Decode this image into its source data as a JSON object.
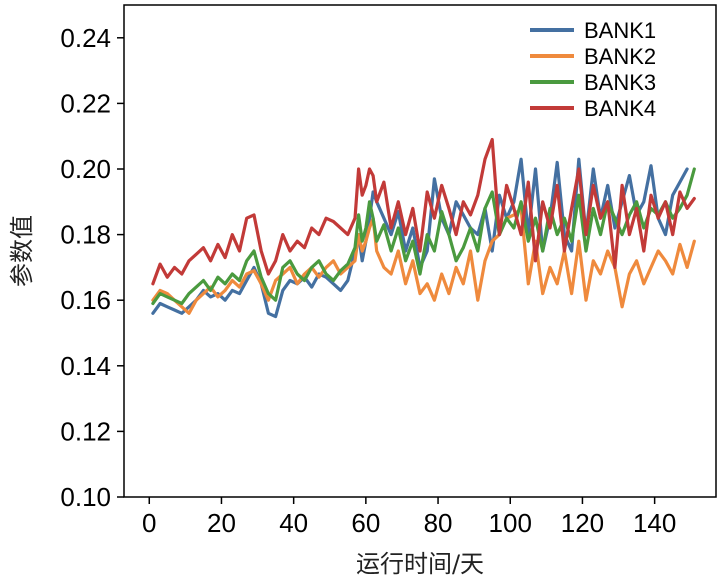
{
  "chart_data": {
    "type": "line",
    "title": "",
    "xlabel": "运行时间/天",
    "ylabel": "参数值",
    "xlim": [
      -7,
      157
    ],
    "ylim": [
      0.1,
      0.25
    ],
    "xticks": [
      0,
      20,
      40,
      60,
      80,
      100,
      120,
      140
    ],
    "xtick_labels": [
      "0",
      "20",
      "40",
      "60",
      "80",
      "100",
      "120",
      "140"
    ],
    "yticks": [
      0.1,
      0.12,
      0.14,
      0.16,
      0.18,
      0.2,
      0.22,
      0.24
    ],
    "ytick_labels": [
      "0.10",
      "0.12",
      "0.14",
      "0.16",
      "0.18",
      "0.20",
      "0.22",
      "0.24"
    ],
    "grid": false,
    "legend_position": "top-right",
    "series": [
      {
        "name": "BANK1",
        "color": "#4470a1",
        "x": [
          1,
          3,
          5,
          7,
          9,
          11,
          13,
          15,
          17,
          19,
          21,
          23,
          25,
          27,
          29,
          31,
          33,
          35,
          37,
          39,
          41,
          43,
          45,
          47,
          49,
          51,
          53,
          55,
          57,
          58,
          59,
          60,
          61,
          62,
          63,
          65,
          67,
          69,
          71,
          73,
          75,
          77,
          79,
          81,
          83,
          85,
          87,
          89,
          91,
          93,
          95,
          97,
          99,
          101,
          103,
          105,
          107,
          109,
          111,
          113,
          115,
          117,
          119,
          121,
          123,
          125,
          127,
          129,
          131,
          133,
          135,
          137,
          139,
          141,
          143,
          145,
          147,
          149
        ],
        "y": [
          0.156,
          0.159,
          0.158,
          0.157,
          0.156,
          0.158,
          0.16,
          0.163,
          0.161,
          0.162,
          0.16,
          0.163,
          0.162,
          0.166,
          0.17,
          0.165,
          0.156,
          0.155,
          0.163,
          0.166,
          0.165,
          0.167,
          0.164,
          0.168,
          0.167,
          0.165,
          0.163,
          0.166,
          0.175,
          0.18,
          0.172,
          0.178,
          0.185,
          0.193,
          0.19,
          0.185,
          0.18,
          0.187,
          0.175,
          0.182,
          0.17,
          0.175,
          0.197,
          0.185,
          0.18,
          0.19,
          0.186,
          0.182,
          0.18,
          0.188,
          0.175,
          0.192,
          0.185,
          0.19,
          0.203,
          0.18,
          0.2,
          0.175,
          0.185,
          0.202,
          0.18,
          0.175,
          0.203,
          0.18,
          0.2,
          0.185,
          0.195,
          0.182,
          0.19,
          0.198,
          0.186,
          0.19,
          0.201,
          0.185,
          0.18,
          0.192,
          0.196,
          0.2
        ]
      },
      {
        "name": "BANK2",
        "color": "#ef8a3d",
        "x": [
          1,
          3,
          5,
          7,
          9,
          11,
          13,
          15,
          17,
          19,
          21,
          23,
          25,
          27,
          29,
          31,
          33,
          35,
          37,
          39,
          41,
          43,
          45,
          47,
          49,
          51,
          53,
          55,
          57,
          58,
          59,
          60,
          61,
          62,
          63,
          65,
          67,
          69,
          71,
          73,
          75,
          77,
          79,
          81,
          83,
          85,
          87,
          89,
          91,
          93,
          95,
          97,
          99,
          101,
          103,
          105,
          107,
          109,
          111,
          113,
          115,
          117,
          119,
          121,
          123,
          125,
          127,
          129,
          131,
          133,
          135,
          137,
          139,
          141,
          143,
          145,
          147,
          149,
          151
        ],
        "y": [
          0.16,
          0.163,
          0.162,
          0.16,
          0.158,
          0.156,
          0.16,
          0.162,
          0.164,
          0.161,
          0.163,
          0.166,
          0.164,
          0.168,
          0.169,
          0.165,
          0.16,
          0.166,
          0.168,
          0.17,
          0.165,
          0.168,
          0.17,
          0.167,
          0.17,
          0.172,
          0.168,
          0.17,
          0.172,
          0.18,
          0.175,
          0.178,
          0.182,
          0.185,
          0.175,
          0.17,
          0.168,
          0.175,
          0.165,
          0.172,
          0.162,
          0.165,
          0.16,
          0.168,
          0.162,
          0.17,
          0.165,
          0.175,
          0.16,
          0.172,
          0.178,
          0.18,
          0.185,
          0.186,
          0.188,
          0.165,
          0.178,
          0.162,
          0.17,
          0.165,
          0.175,
          0.162,
          0.178,
          0.16,
          0.172,
          0.168,
          0.175,
          0.17,
          0.158,
          0.168,
          0.172,
          0.165,
          0.17,
          0.175,
          0.172,
          0.168,
          0.177,
          0.17,
          0.178
        ]
      },
      {
        "name": "BANK3",
        "color": "#4a9a3f",
        "x": [
          1,
          3,
          5,
          7,
          9,
          11,
          13,
          15,
          17,
          19,
          21,
          23,
          25,
          27,
          29,
          31,
          33,
          35,
          37,
          39,
          41,
          43,
          45,
          47,
          49,
          51,
          53,
          55,
          57,
          58,
          59,
          60,
          61,
          62,
          63,
          65,
          67,
          69,
          71,
          73,
          75,
          77,
          79,
          81,
          83,
          85,
          87,
          89,
          91,
          93,
          95,
          97,
          99,
          101,
          103,
          105,
          107,
          109,
          111,
          113,
          115,
          117,
          119,
          121,
          123,
          125,
          127,
          129,
          131,
          133,
          135,
          137,
          139,
          141,
          143,
          145,
          147,
          149,
          151
        ],
        "y": [
          0.159,
          0.162,
          0.161,
          0.16,
          0.159,
          0.162,
          0.164,
          0.166,
          0.163,
          0.167,
          0.165,
          0.168,
          0.166,
          0.172,
          0.175,
          0.167,
          0.162,
          0.16,
          0.17,
          0.172,
          0.168,
          0.166,
          0.17,
          0.172,
          0.168,
          0.166,
          0.169,
          0.171,
          0.176,
          0.186,
          0.178,
          0.182,
          0.19,
          0.185,
          0.178,
          0.183,
          0.175,
          0.182,
          0.172,
          0.178,
          0.168,
          0.18,
          0.175,
          0.187,
          0.18,
          0.172,
          0.176,
          0.182,
          0.175,
          0.188,
          0.193,
          0.18,
          0.185,
          0.182,
          0.19,
          0.178,
          0.185,
          0.175,
          0.188,
          0.18,
          0.185,
          0.178,
          0.192,
          0.175,
          0.188,
          0.18,
          0.19,
          0.185,
          0.18,
          0.186,
          0.19,
          0.182,
          0.188,
          0.186,
          0.19,
          0.185,
          0.188,
          0.192,
          0.2
        ]
      },
      {
        "name": "BANK4",
        "color": "#c23a38",
        "x": [
          1,
          3,
          5,
          7,
          9,
          11,
          13,
          15,
          17,
          19,
          21,
          23,
          25,
          27,
          29,
          31,
          33,
          35,
          37,
          39,
          41,
          43,
          45,
          47,
          49,
          51,
          53,
          55,
          57,
          58,
          59,
          60,
          61,
          62,
          63,
          65,
          67,
          69,
          71,
          73,
          75,
          77,
          79,
          81,
          83,
          85,
          87,
          89,
          91,
          93,
          95,
          97,
          99,
          101,
          103,
          105,
          107,
          109,
          111,
          113,
          115,
          117,
          119,
          121,
          123,
          125,
          127,
          129,
          131,
          133,
          135,
          137,
          139,
          141,
          143,
          145,
          147,
          149,
          151
        ],
        "y": [
          0.165,
          0.171,
          0.167,
          0.17,
          0.168,
          0.172,
          0.174,
          0.176,
          0.172,
          0.177,
          0.173,
          0.18,
          0.175,
          0.185,
          0.186,
          0.175,
          0.168,
          0.172,
          0.18,
          0.175,
          0.178,
          0.176,
          0.182,
          0.18,
          0.185,
          0.184,
          0.182,
          0.18,
          0.185,
          0.2,
          0.192,
          0.195,
          0.2,
          0.198,
          0.19,
          0.196,
          0.182,
          0.19,
          0.18,
          0.188,
          0.175,
          0.193,
          0.185,
          0.195,
          0.188,
          0.18,
          0.19,
          0.186,
          0.192,
          0.203,
          0.209,
          0.18,
          0.195,
          0.188,
          0.18,
          0.196,
          0.172,
          0.19,
          0.182,
          0.195,
          0.175,
          0.188,
          0.2,
          0.18,
          0.195,
          0.185,
          0.19,
          0.17,
          0.195,
          0.18,
          0.188,
          0.175,
          0.192,
          0.185,
          0.19,
          0.18,
          0.193,
          0.188,
          0.191
        ]
      }
    ]
  }
}
